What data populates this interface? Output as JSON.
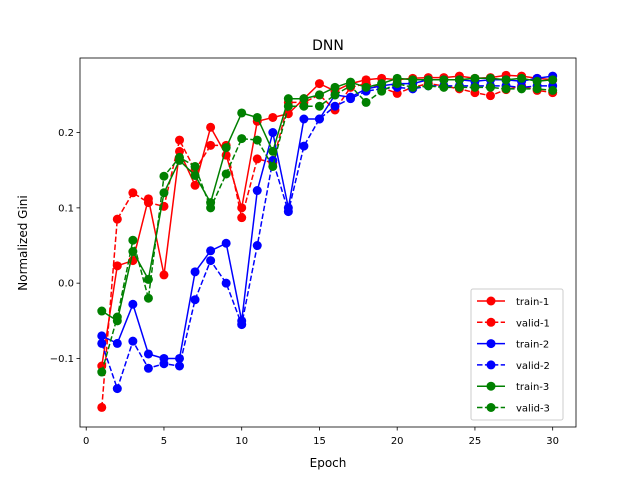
{
  "chart_data": {
    "type": "line",
    "title": "DNN",
    "xlabel": "Epoch",
    "ylabel": "Normalized Gini",
    "xlim": [
      -0.4,
      31.5
    ],
    "ylim": [
      -0.191,
      0.299
    ],
    "xticks": [
      0,
      5,
      10,
      15,
      20,
      25,
      30
    ],
    "xtick_labels": [
      "0",
      "5",
      "10",
      "15",
      "20",
      "25",
      "30"
    ],
    "yticks": [
      -0.1,
      0.0,
      0.1,
      0.2
    ],
    "ytick_labels": [
      "−0.1",
      "0.0",
      "0.1",
      "0.2"
    ],
    "grid": false,
    "legend_placement": "lower right",
    "x": [
      1,
      2,
      3,
      4,
      5,
      6,
      7,
      8,
      9,
      10,
      11,
      12,
      13,
      14,
      15,
      16,
      17,
      18,
      19,
      20,
      21,
      22,
      23,
      24,
      25,
      26,
      27,
      28,
      29,
      30
    ],
    "series": [
      {
        "name": "train-1",
        "color": "#ff0000",
        "dashed": false,
        "values": [
          -0.11,
          0.023,
          0.03,
          0.112,
          0.011,
          0.175,
          0.13,
          0.207,
          0.17,
          0.1,
          0.215,
          0.22,
          0.225,
          0.245,
          0.265,
          0.255,
          0.265,
          0.27,
          0.272,
          0.27,
          0.272,
          0.273,
          0.273,
          0.275,
          0.272,
          0.273,
          0.276,
          0.275,
          0.272,
          0.27
        ]
      },
      {
        "name": "valid-1",
        "color": "#ff0000",
        "dashed": true,
        "values": [
          -0.165,
          0.085,
          0.12,
          0.107,
          0.102,
          0.19,
          0.15,
          0.183,
          0.183,
          0.087,
          0.165,
          0.16,
          0.24,
          0.24,
          0.25,
          0.23,
          0.26,
          0.265,
          0.26,
          0.252,
          0.26,
          0.265,
          0.262,
          0.258,
          0.253,
          0.249,
          0.257,
          0.262,
          0.256,
          0.253
        ]
      },
      {
        "name": "train-2",
        "color": "#0000ff",
        "dashed": false,
        "values": [
          -0.07,
          -0.08,
          -0.028,
          -0.094,
          -0.1,
          -0.1,
          0.015,
          0.043,
          0.053,
          -0.05,
          0.123,
          0.2,
          0.1,
          0.218,
          0.218,
          0.25,
          0.247,
          0.258,
          0.262,
          0.265,
          0.265,
          0.27,
          0.27,
          0.27,
          0.268,
          0.27,
          0.27,
          0.268,
          0.272,
          0.275
        ]
      },
      {
        "name": "valid-2",
        "color": "#0000ff",
        "dashed": true,
        "values": [
          -0.08,
          -0.14,
          -0.077,
          -0.113,
          -0.107,
          -0.11,
          -0.022,
          0.03,
          0.0,
          -0.055,
          0.05,
          0.163,
          0.095,
          0.182,
          0.218,
          0.235,
          0.245,
          0.255,
          0.258,
          0.26,
          0.258,
          0.262,
          0.262,
          0.262,
          0.262,
          0.262,
          0.262,
          0.26,
          0.262,
          0.262
        ]
      },
      {
        "name": "train-3",
        "color": "#008000",
        "dashed": false,
        "values": [
          -0.037,
          -0.05,
          0.042,
          0.005,
          0.12,
          0.163,
          0.143,
          0.107,
          0.18,
          0.226,
          0.22,
          0.175,
          0.245,
          0.245,
          0.25,
          0.26,
          0.267,
          0.26,
          0.265,
          0.272,
          0.27,
          0.27,
          0.27,
          0.27,
          0.272,
          0.272,
          0.27,
          0.272,
          0.268,
          0.27
        ]
      },
      {
        "name": "valid-3",
        "color": "#008000",
        "dashed": true,
        "values": [
          -0.118,
          -0.045,
          0.057,
          -0.02,
          0.142,
          0.167,
          0.155,
          0.1,
          0.145,
          0.192,
          0.19,
          0.155,
          0.235,
          0.235,
          0.235,
          0.25,
          0.262,
          0.24,
          0.255,
          0.265,
          0.26,
          0.262,
          0.26,
          0.26,
          0.26,
          0.26,
          0.258,
          0.258,
          0.258,
          0.256
        ]
      }
    ]
  }
}
